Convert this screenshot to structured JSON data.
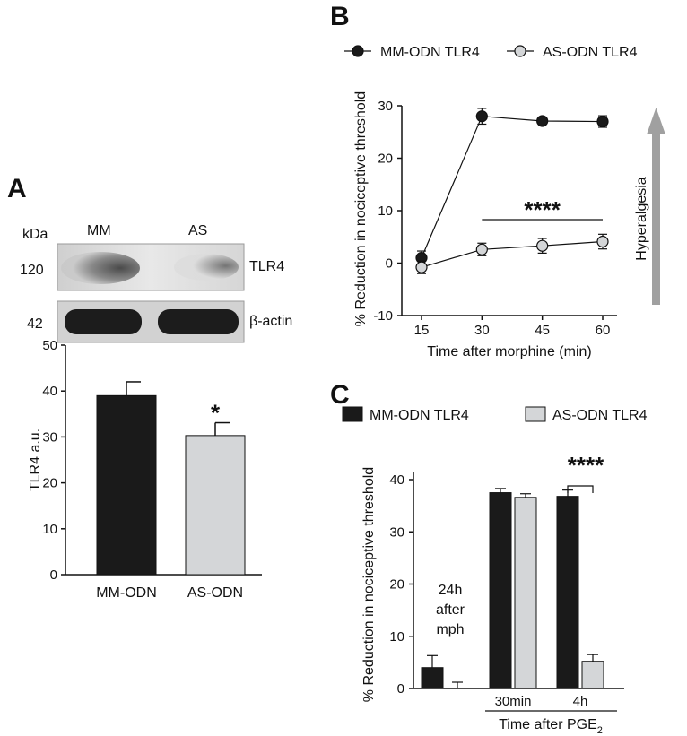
{
  "panels": {
    "a_letter": "A",
    "b_letter": "B",
    "c_letter": "C"
  },
  "blot": {
    "unit_label": "kDa",
    "lane_labels": [
      "MM",
      "AS"
    ],
    "rows": [
      {
        "mw": "120",
        "protein": "TLR4"
      },
      {
        "mw": "42",
        "protein": "β-actin"
      }
    ]
  },
  "colors": {
    "dark": "#1a1a1a",
    "light": "#d4d6d8",
    "arrow": "#a0a0a0"
  },
  "chart_data": [
    {
      "id": "A",
      "type": "bar",
      "ylabel": "TLR4 a.u.",
      "ylim": [
        0,
        50
      ],
      "yticks": [
        "0",
        "10",
        "20",
        "30",
        "40",
        "50"
      ],
      "categories": [
        "MM-ODN",
        "AS-ODN"
      ],
      "values": [
        39,
        30.3
      ],
      "errors": [
        3,
        2.8
      ],
      "bar_colors": [
        "dark",
        "light"
      ],
      "annotation": "*"
    },
    {
      "id": "B",
      "type": "line",
      "xlabel": "Time after morphine (min)",
      "ylabel": "% Reduction in nociceptive threshold",
      "x": [
        15,
        30,
        45,
        60
      ],
      "xticks": [
        "15",
        "30",
        "45",
        "60"
      ],
      "yticks": [
        "-10",
        "0",
        "10",
        "20",
        "30"
      ],
      "ylim": [
        -10,
        30
      ],
      "series": [
        {
          "name": "MM-ODN TLR4",
          "values": [
            1,
            28,
            27.1,
            27
          ],
          "errors": [
            1.3,
            1.5,
            0.6,
            1.1
          ],
          "marker": "filled"
        },
        {
          "name": "AS-ODN TLR4",
          "values": [
            -0.8,
            2.6,
            3.3,
            4.1
          ],
          "errors": [
            1.2,
            1.2,
            1.4,
            1.4
          ],
          "marker": "open"
        }
      ],
      "significance": "****",
      "side_label": "Hyperalgesia"
    },
    {
      "id": "C",
      "type": "bar",
      "ylabel": "% Reduction in nociceptive threshold",
      "ylim": [
        0,
        40
      ],
      "yticks": [
        "0",
        "10",
        "20",
        "30",
        "40"
      ],
      "groups": [
        {
          "label": "",
          "note": [
            "24h",
            "after",
            "mph"
          ],
          "values": [
            4,
            0
          ],
          "errors": [
            2.3,
            1.2
          ]
        },
        {
          "label": "30min",
          "values": [
            37.5,
            36.6
          ],
          "errors": [
            0.8,
            0.7
          ]
        },
        {
          "label": "4h",
          "values": [
            36.8,
            5.2
          ],
          "errors": [
            1.2,
            1.3
          ]
        }
      ],
      "series": [
        {
          "name": "MM-ODN TLR4",
          "color": "dark"
        },
        {
          "name": "AS-ODN TLR4",
          "color": "light"
        }
      ],
      "xlabel_main": "Time after PGE",
      "xlabel_sub": "2",
      "significance": "****"
    }
  ]
}
